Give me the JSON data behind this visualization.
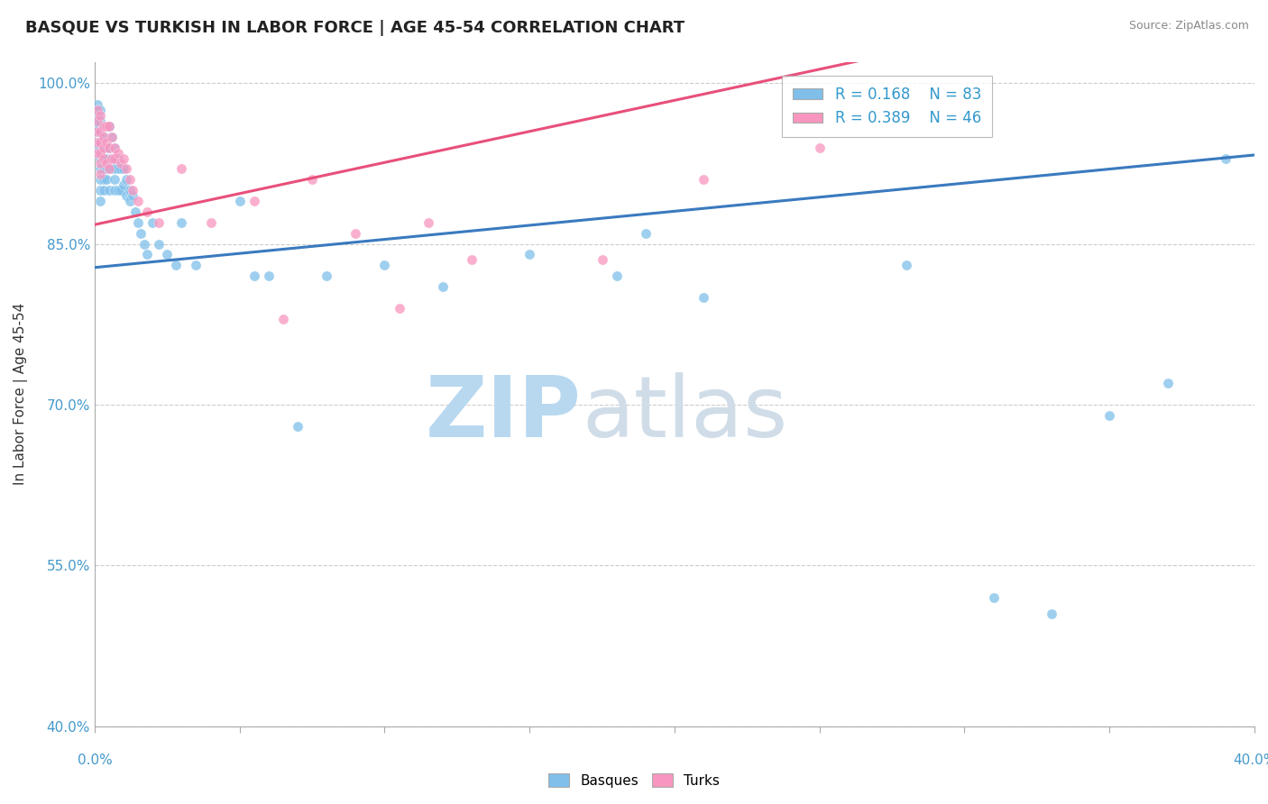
{
  "title": "BASQUE VS TURKISH IN LABOR FORCE | AGE 45-54 CORRELATION CHART",
  "source": "Source: ZipAtlas.com",
  "ylabel": "In Labor Force | Age 45-54",
  "yticks": [
    40.0,
    55.0,
    70.0,
    85.0,
    100.0
  ],
  "xlim": [
    0.0,
    0.4
  ],
  "ylim": [
    0.4,
    1.02
  ],
  "blue_R": 0.168,
  "blue_N": 83,
  "pink_R": 0.389,
  "pink_N": 46,
  "blue_color": "#7fbfea",
  "pink_color": "#f896c0",
  "blue_line_color": "#3a7abf",
  "pink_line_color": "#e8507a",
  "watermark_zip": "ZIP",
  "watermark_atlas": "atlas",
  "watermark_color": "#cce4f5",
  "legend_blue_label": "Basques",
  "legend_pink_label": "Turks",
  "blue_line_x0": 0.0,
  "blue_line_x1": 0.4,
  "blue_line_y0": 0.828,
  "blue_line_y1": 0.933,
  "pink_line_x0": 0.0,
  "pink_line_x1": 0.4,
  "pink_line_y0": 0.868,
  "pink_line_y1": 1.1,
  "blue_scatter_x": [
    0.001,
    0.001,
    0.001,
    0.001,
    0.001,
    0.001,
    0.001,
    0.001,
    0.001,
    0.002,
    0.002,
    0.002,
    0.002,
    0.002,
    0.002,
    0.002,
    0.002,
    0.002,
    0.002,
    0.002,
    0.003,
    0.003,
    0.003,
    0.003,
    0.003,
    0.003,
    0.003,
    0.004,
    0.004,
    0.004,
    0.004,
    0.004,
    0.005,
    0.005,
    0.005,
    0.005,
    0.006,
    0.006,
    0.006,
    0.007,
    0.007,
    0.007,
    0.007,
    0.008,
    0.008,
    0.008,
    0.009,
    0.009,
    0.01,
    0.01,
    0.011,
    0.011,
    0.012,
    0.012,
    0.013,
    0.014,
    0.015,
    0.016,
    0.017,
    0.018,
    0.02,
    0.022,
    0.025,
    0.028,
    0.03,
    0.035,
    0.05,
    0.055,
    0.06,
    0.07,
    0.08,
    0.1,
    0.12,
    0.15,
    0.18,
    0.19,
    0.21,
    0.28,
    0.31,
    0.33,
    0.35,
    0.37,
    0.39
  ],
  "blue_scatter_y": [
    0.98,
    0.975,
    0.97,
    0.965,
    0.96,
    0.955,
    0.945,
    0.94,
    0.935,
    0.975,
    0.965,
    0.96,
    0.955,
    0.945,
    0.94,
    0.93,
    0.92,
    0.91,
    0.9,
    0.89,
    0.96,
    0.95,
    0.94,
    0.93,
    0.92,
    0.91,
    0.9,
    0.96,
    0.94,
    0.93,
    0.92,
    0.91,
    0.96,
    0.94,
    0.92,
    0.9,
    0.95,
    0.93,
    0.92,
    0.94,
    0.92,
    0.91,
    0.9,
    0.93,
    0.92,
    0.9,
    0.92,
    0.9,
    0.92,
    0.905,
    0.91,
    0.895,
    0.9,
    0.89,
    0.895,
    0.88,
    0.87,
    0.86,
    0.85,
    0.84,
    0.87,
    0.85,
    0.84,
    0.83,
    0.87,
    0.83,
    0.89,
    0.82,
    0.82,
    0.68,
    0.82,
    0.83,
    0.81,
    0.84,
    0.82,
    0.86,
    0.8,
    0.83,
    0.52,
    0.505,
    0.69,
    0.72,
    0.93
  ],
  "pink_scatter_x": [
    0.001,
    0.001,
    0.001,
    0.001,
    0.001,
    0.002,
    0.002,
    0.002,
    0.002,
    0.002,
    0.002,
    0.003,
    0.003,
    0.003,
    0.003,
    0.004,
    0.004,
    0.004,
    0.005,
    0.005,
    0.005,
    0.006,
    0.006,
    0.007,
    0.007,
    0.008,
    0.009,
    0.01,
    0.011,
    0.012,
    0.013,
    0.015,
    0.018,
    0.022,
    0.03,
    0.04,
    0.055,
    0.065,
    0.075,
    0.09,
    0.105,
    0.115,
    0.13,
    0.175,
    0.21,
    0.25
  ],
  "pink_scatter_y": [
    0.975,
    0.965,
    0.955,
    0.945,
    0.935,
    0.97,
    0.955,
    0.945,
    0.935,
    0.925,
    0.915,
    0.96,
    0.95,
    0.94,
    0.93,
    0.96,
    0.945,
    0.925,
    0.96,
    0.94,
    0.92,
    0.95,
    0.93,
    0.94,
    0.93,
    0.935,
    0.925,
    0.93,
    0.92,
    0.91,
    0.9,
    0.89,
    0.88,
    0.87,
    0.92,
    0.87,
    0.89,
    0.78,
    0.91,
    0.86,
    0.79,
    0.87,
    0.835,
    0.835,
    0.91,
    0.94
  ]
}
